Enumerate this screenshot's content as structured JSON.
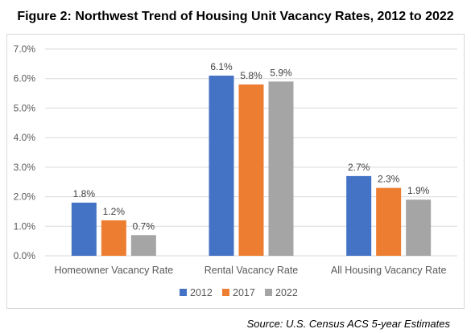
{
  "title": "Figure 2: Northwest Trend of Housing Unit Vacancy Rates, 2012 to 2022",
  "source": "Source: U.S. Census ACS 5-year Estimates",
  "colors": {
    "2012": "#4472c4",
    "2017": "#ed7d31",
    "2022": "#a5a5a5",
    "grid": "#d9d9d9",
    "text": "#595959"
  },
  "chart_data": {
    "type": "bar",
    "categories": [
      "Homeowner Vacancy Rate",
      "Rental Vacancy Rate",
      "All Housing Vacancy Rate"
    ],
    "series": [
      {
        "name": "2012",
        "values": [
          1.8,
          6.1,
          2.7
        ],
        "labels": [
          "1.8%",
          "6.1%",
          "2.7%"
        ]
      },
      {
        "name": "2017",
        "values": [
          1.2,
          5.8,
          2.3
        ],
        "labels": [
          "1.2%",
          "5.8%",
          "2.3%"
        ]
      },
      {
        "name": "2022",
        "values": [
          0.7,
          5.9,
          1.9
        ],
        "labels": [
          "0.7%",
          "5.9%",
          "1.9%"
        ]
      }
    ],
    "ylim": [
      0,
      7
    ],
    "yticks": [
      "0.0%",
      "1.0%",
      "2.0%",
      "3.0%",
      "4.0%",
      "5.0%",
      "6.0%",
      "7.0%"
    ],
    "grid": true,
    "legend": "bottom",
    "xlabel": "",
    "ylabel": ""
  }
}
